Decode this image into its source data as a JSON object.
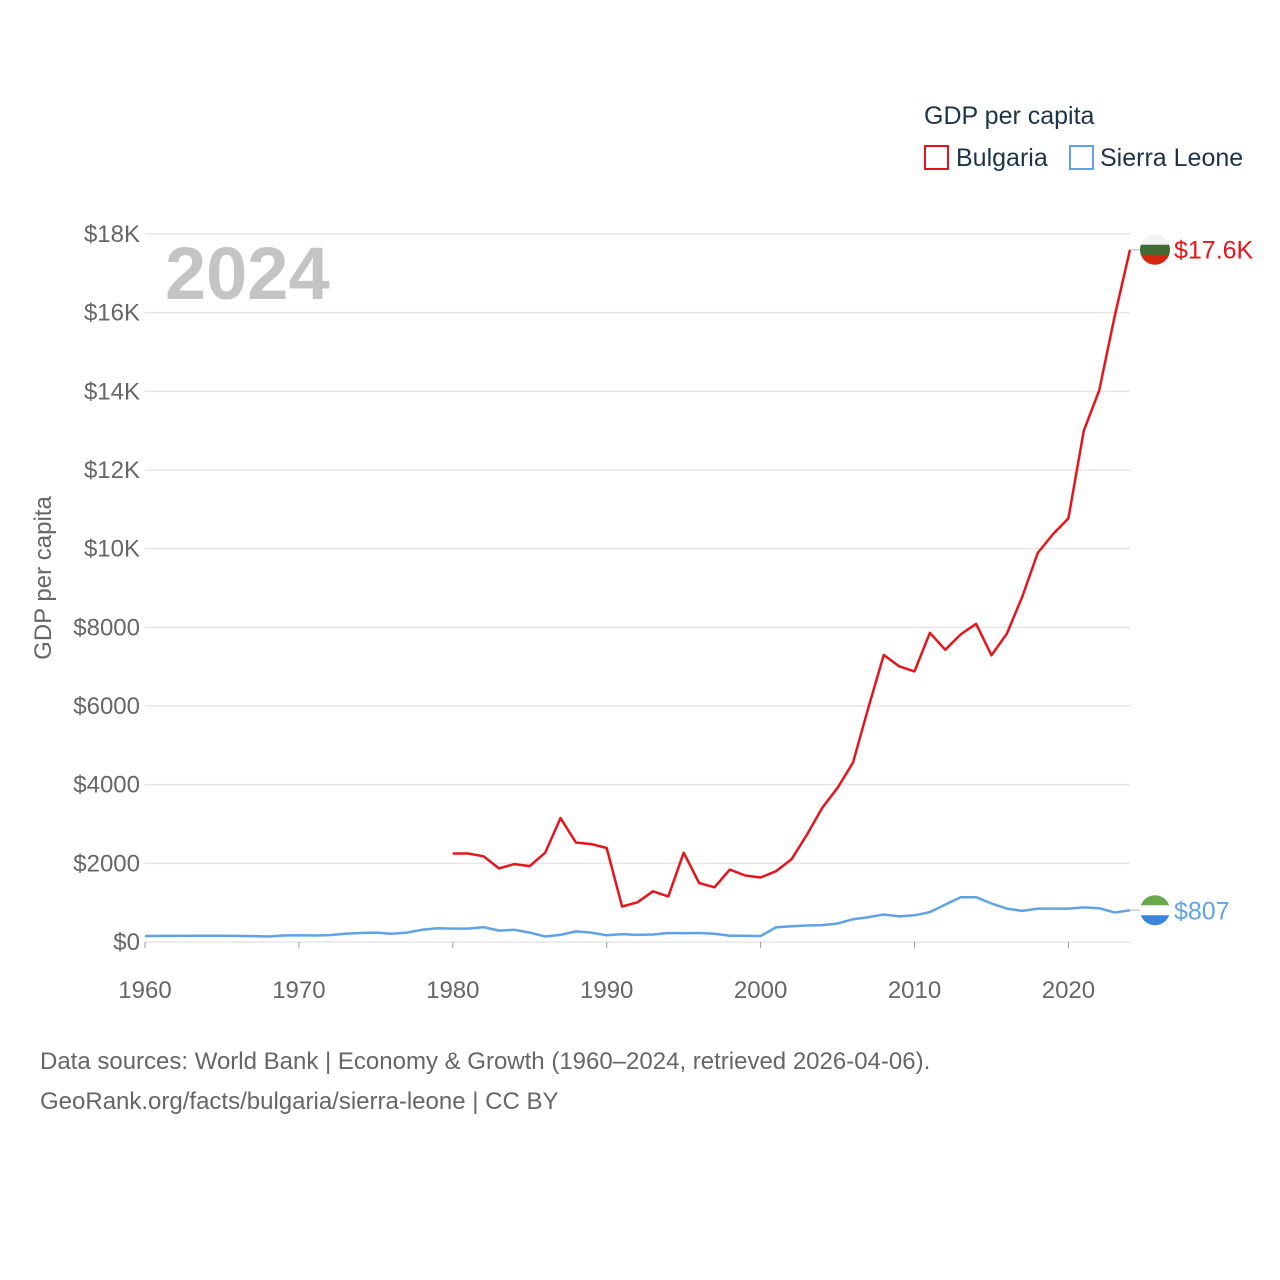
{
  "chart_data": {
    "type": "line",
    "title": "GDP per capita",
    "year_label": "2024",
    "ylabel": "GDP per capita",
    "xlabel": "",
    "xlim": [
      1960,
      2024
    ],
    "ylim": [
      0,
      18000
    ],
    "x_ticks": [
      "1960",
      "1970",
      "1980",
      "1990",
      "2000",
      "2010",
      "2020"
    ],
    "y_ticks": [
      "$0",
      "$2000",
      "$4000",
      "$6000",
      "$8000",
      "$10K",
      "$12K",
      "$14K",
      "$16K",
      "$18K"
    ],
    "legend_title": "GDP per capita",
    "colors": {
      "bulgaria": "#e8141b",
      "sierra_leone": "#5fa3e6",
      "grid": "#e6e6e6"
    },
    "series": [
      {
        "name": "Bulgaria",
        "key": "bulgaria",
        "end_label": "$17.6K",
        "x": [
          1980,
          1981,
          1982,
          1983,
          1984,
          1985,
          1986,
          1987,
          1988,
          1989,
          1990,
          1991,
          1992,
          1993,
          1994,
          1995,
          1996,
          1997,
          1998,
          1999,
          2000,
          2001,
          2002,
          2003,
          2004,
          2005,
          2006,
          2007,
          2008,
          2009,
          2010,
          2011,
          2012,
          2013,
          2014,
          2015,
          2016,
          2017,
          2018,
          2019,
          2020,
          2021,
          2022,
          2023,
          2024
        ],
        "values": [
          2250,
          2250,
          2180,
          1870,
          1980,
          1930,
          2270,
          3150,
          2530,
          2490,
          2390,
          900,
          1010,
          1290,
          1160,
          2270,
          1500,
          1390,
          1840,
          1690,
          1640,
          1800,
          2100,
          2720,
          3410,
          3920,
          4560,
          5960,
          7300,
          7010,
          6880,
          7860,
          7430,
          7820,
          8090,
          7290,
          7840,
          8780,
          9890,
          10370,
          10770,
          13000,
          14020,
          15900,
          17600
        ]
      },
      {
        "name": "Sierra Leone",
        "key": "sierra_leone",
        "end_label": "$807",
        "x": [
          1960,
          1961,
          1962,
          1963,
          1964,
          1965,
          1966,
          1967,
          1968,
          1969,
          1970,
          1971,
          1972,
          1973,
          1974,
          1975,
          1976,
          1977,
          1978,
          1979,
          1980,
          1981,
          1982,
          1983,
          1984,
          1985,
          1986,
          1987,
          1988,
          1989,
          1990,
          1991,
          1992,
          1993,
          1994,
          1995,
          1996,
          1997,
          1998,
          1999,
          2000,
          2001,
          2002,
          2003,
          2004,
          2005,
          2006,
          2007,
          2008,
          2009,
          2010,
          2011,
          2012,
          2013,
          2014,
          2015,
          2016,
          2017,
          2018,
          2019,
          2020,
          2021,
          2022,
          2023,
          2024
        ],
        "values": [
          150,
          155,
          155,
          158,
          160,
          158,
          155,
          150,
          140,
          165,
          170,
          165,
          175,
          210,
          230,
          240,
          210,
          240,
          310,
          350,
          340,
          340,
          380,
          290,
          310,
          240,
          140,
          180,
          270,
          240,
          170,
          200,
          180,
          190,
          230,
          220,
          230,
          210,
          160,
          160,
          150,
          370,
          400,
          420,
          430,
          470,
          580,
          630,
          700,
          650,
          680,
          760,
          950,
          1140,
          1140,
          980,
          850,
          790,
          850,
          850,
          850,
          880,
          860,
          750,
          807
        ]
      }
    ]
  },
  "footer": {
    "line1": "Data sources: World Bank | Economy & Growth (1960–2024, retrieved 2026-04-06).",
    "line2": "GeoRank.org/facts/bulgaria/sierra-leone | CC BY"
  }
}
